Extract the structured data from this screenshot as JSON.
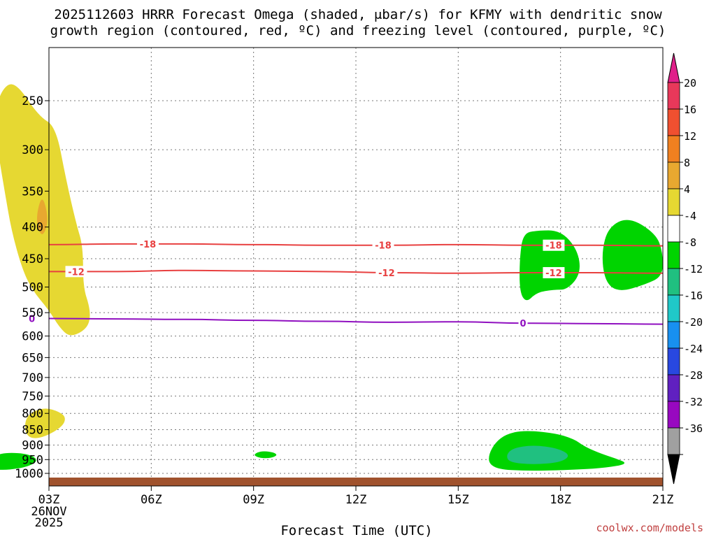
{
  "chart_data": {
    "type": "heatmap",
    "title": {
      "line1": "2025112603 HRRR Forecast Omega (shaded, μbar/s) for KFMY with dendritic snow",
      "line2": "growth region (contoured, red, ºC) and freezing level (contoured, purple, ºC)"
    },
    "xlabel": "Forecast Time (UTC)",
    "x_range_hours": [
      0,
      18
    ],
    "x_ticks": [
      {
        "hour": 0,
        "label": "03Z"
      },
      {
        "hour": 3,
        "label": "06Z"
      },
      {
        "hour": 6,
        "label": "09Z"
      },
      {
        "hour": 9,
        "label": "12Z"
      },
      {
        "hour": 12,
        "label": "15Z"
      },
      {
        "hour": 15,
        "label": "18Z"
      },
      {
        "hour": 18,
        "label": "21Z"
      }
    ],
    "start_date": [
      "26NOV",
      "2025"
    ],
    "y_ticks": [
      250,
      300,
      350,
      400,
      450,
      500,
      550,
      600,
      650,
      700,
      750,
      800,
      850,
      900,
      950,
      1000
    ],
    "y_range_hpa": [
      200,
      1030
    ],
    "colorbar": {
      "labels": [
        "20",
        "16",
        "12",
        "8",
        "4",
        "-4",
        "-8",
        "-12",
        "-16",
        "-20",
        "-24",
        "-28",
        "-32",
        "-36"
      ],
      "colors": [
        "#e8385a",
        "#f05030",
        "#f08020",
        "#e8a830",
        "#e6d832",
        "#ffffff",
        "#00d400",
        "#20c080",
        "#20c8c8",
        "#1890f0",
        "#2848e0",
        "#6020c0",
        "#9808c0",
        "#a0a0a0"
      ],
      "top_color": "#e0208a",
      "bottom_color": "#000000"
    },
    "contours": [
      {
        "name": "dgz-minus18",
        "color": "#e84040",
        "label": "-18",
        "points": [
          [
            0,
            427
          ],
          [
            2,
            426
          ],
          [
            4,
            426
          ],
          [
            6,
            427
          ],
          [
            8,
            428
          ],
          [
            10,
            428
          ],
          [
            12,
            427
          ],
          [
            14,
            428
          ],
          [
            16,
            428
          ],
          [
            18,
            429
          ]
        ],
        "label_hours": [
          2.9,
          9.8,
          14.8
        ]
      },
      {
        "name": "dgz-minus12",
        "color": "#e84040",
        "label": "-12",
        "points": [
          [
            0,
            472
          ],
          [
            2,
            472
          ],
          [
            4,
            470
          ],
          [
            6,
            471
          ],
          [
            8,
            472
          ],
          [
            10,
            474
          ],
          [
            12,
            475
          ],
          [
            14,
            474
          ],
          [
            16,
            474
          ],
          [
            18,
            475
          ]
        ],
        "label_hours": [
          0.8,
          9.9,
          14.8
        ]
      },
      {
        "name": "freezing-level",
        "color": "#9010c0",
        "label": "0",
        "points": [
          [
            0,
            562
          ],
          [
            2,
            563
          ],
          [
            4,
            564
          ],
          [
            6,
            566
          ],
          [
            8,
            568
          ],
          [
            10,
            570
          ],
          [
            12,
            569
          ],
          [
            14,
            572
          ],
          [
            16,
            573
          ],
          [
            18,
            574
          ]
        ],
        "label_hours": [
          -0.5,
          13.9
        ]
      }
    ],
    "omega_regions": [
      {
        "name": "omega-positive-upper",
        "value": "4-8",
        "color": "#e6d832",
        "points": [
          [
            -1.0,
            232
          ],
          [
            -0.3,
            265
          ],
          [
            0.2,
            275
          ],
          [
            0.5,
            335
          ],
          [
            0.8,
            395
          ],
          [
            1.0,
            430
          ],
          [
            1.0,
            500
          ],
          [
            1.2,
            540
          ],
          [
            1.2,
            570
          ],
          [
            1.0,
            590
          ],
          [
            0.6,
            602
          ],
          [
            0.3,
            580
          ],
          [
            0,
            545
          ],
          [
            -0.5,
            505
          ],
          [
            -0.8,
            465
          ],
          [
            -1.1,
            405
          ],
          [
            -1.3,
            350
          ],
          [
            -1.5,
            300
          ],
          [
            -1.6,
            265
          ],
          [
            -1.4,
            240
          ]
        ]
      },
      {
        "name": "omega-positive-core",
        "value": "8-12",
        "color": "#e8a830",
        "points": [
          [
            -0.2,
            352
          ],
          [
            0,
            390
          ],
          [
            -0.2,
            418
          ],
          [
            -0.4,
            390
          ]
        ]
      },
      {
        "name": "omega-positive-lower",
        "value": "4-8",
        "color": "#e6d832",
        "points": [
          [
            -0.1,
            783
          ],
          [
            0.3,
            795
          ],
          [
            0.5,
            812
          ],
          [
            0.4,
            840
          ],
          [
            -0.1,
            872
          ],
          [
            -0.5,
            880
          ],
          [
            -0.7,
            860
          ],
          [
            -0.7,
            820
          ],
          [
            -0.5,
            795
          ]
        ]
      },
      {
        "name": "omega-negative-a",
        "value": "-4--8",
        "color": "#00d400",
        "points": [
          [
            -1.2,
            925
          ],
          [
            -0.6,
            930
          ],
          [
            -0.3,
            952
          ],
          [
            -0.6,
            975
          ],
          [
            -1.2,
            988
          ],
          [
            -1.7,
            985
          ],
          [
            -2,
            965
          ],
          [
            -1.6,
            935
          ]
        ]
      },
      {
        "name": "omega-negative-b",
        "value": "-4--8",
        "color": "#00d400",
        "points": [
          [
            6.3,
            920
          ],
          [
            6.6,
            925
          ],
          [
            6.7,
            935
          ],
          [
            6.5,
            945
          ],
          [
            6.2,
            945
          ],
          [
            6,
            935
          ],
          [
            6.1,
            925
          ]
        ]
      },
      {
        "name": "omega-negative-c",
        "value": "-4--8",
        "color": "#00d400",
        "points": [
          [
            15.0,
            405
          ],
          [
            15.5,
            435
          ],
          [
            15.6,
            475
          ],
          [
            15.2,
            505
          ],
          [
            14.8,
            505
          ],
          [
            14.3,
            510
          ],
          [
            14.0,
            530
          ],
          [
            13.8,
            510
          ],
          [
            13.8,
            450
          ],
          [
            13.9,
            410
          ],
          [
            14.3,
            405
          ]
        ]
      },
      {
        "name": "omega-negative-d",
        "value": "-4--8",
        "color": "#00d400",
        "points": [
          [
            17.0,
            385
          ],
          [
            17.8,
            410
          ],
          [
            18.0,
            440
          ],
          [
            18.0,
            480
          ],
          [
            17.5,
            495
          ],
          [
            16.7,
            510
          ],
          [
            16.3,
            490
          ],
          [
            16.2,
            440
          ],
          [
            16.4,
            400
          ]
        ]
      },
      {
        "name": "omega-negative-e",
        "value": "-4--8",
        "color": "#00d400",
        "points": [
          [
            13.9,
            852
          ],
          [
            14.8,
            860
          ],
          [
            15.4,
            880
          ],
          [
            15.7,
            905
          ],
          [
            16.2,
            930
          ],
          [
            16.6,
            945
          ],
          [
            17.0,
            965
          ],
          [
            16.3,
            980
          ],
          [
            15.6,
            985
          ],
          [
            14.6,
            990
          ],
          [
            13.9,
            990
          ],
          [
            13.2,
            985
          ],
          [
            12.9,
            965
          ],
          [
            12.9,
            930
          ],
          [
            13.1,
            890
          ],
          [
            13.4,
            865
          ]
        ]
      },
      {
        "name": "omega-negative-f",
        "value": "-8--12",
        "color": "#20c080",
        "points": [
          [
            14.2,
            900
          ],
          [
            14.9,
            910
          ],
          [
            15.3,
            935
          ],
          [
            15.0,
            960
          ],
          [
            14.2,
            968
          ],
          [
            13.5,
            960
          ],
          [
            13.4,
            935
          ],
          [
            13.6,
            910
          ]
        ]
      }
    ],
    "ground_hpa": 1015,
    "watermark": "coolwx.com/models"
  }
}
